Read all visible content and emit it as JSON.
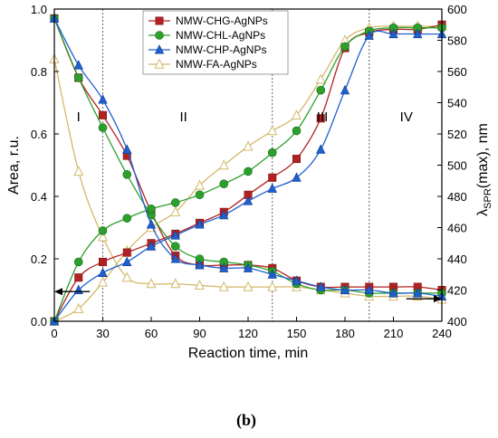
{
  "chart_data": {
    "type": "line",
    "xlabel": "Reaction time, min",
    "ylabel": "Area, r.u.",
    "y2label": {
      "main": "λ",
      "sub": "SPR",
      "tail": "(max), nm"
    },
    "xlim": [
      0,
      240
    ],
    "ylim": [
      0,
      1.0
    ],
    "y2lim": [
      400,
      600
    ],
    "xticks": [
      0,
      30,
      60,
      90,
      120,
      150,
      180,
      210,
      240
    ],
    "yticks": [
      0.0,
      0.2,
      0.4,
      0.6,
      0.8,
      1.0
    ],
    "y2ticks": [
      400,
      420,
      440,
      460,
      480,
      500,
      520,
      540,
      560,
      580,
      600
    ],
    "grid": false,
    "legend_position": "top-right",
    "zone_dividers_x": [
      30,
      135,
      195
    ],
    "zones": [
      {
        "label": "I",
        "x": 15,
        "y": 0.64
      },
      {
        "label": "II",
        "x": 80,
        "y": 0.64
      },
      {
        "label": "III",
        "x": 166,
        "y": 0.64
      },
      {
        "label": "IV",
        "x": 218,
        "y": 0.64
      }
    ],
    "arrows": [
      {
        "name": "left-axis-arrow",
        "from_x": 22,
        "to_x": 0,
        "y": 0.095
      },
      {
        "name": "right-axis-arrow",
        "from_x": 218,
        "to_x": 240,
        "y": 0.072
      }
    ],
    "x": [
      0,
      15,
      30,
      45,
      60,
      75,
      90,
      105,
      120,
      135,
      150,
      165,
      180,
      195,
      210,
      225,
      240
    ],
    "series": [
      {
        "name": "NMW-CHG-AgNPs",
        "color": "#b22222",
        "marker": "square",
        "area": [
          0.97,
          0.78,
          0.66,
          0.53,
          0.35,
          0.21,
          0.18,
          0.18,
          0.18,
          0.17,
          0.13,
          0.11,
          0.11,
          0.11,
          0.11,
          0.11,
          0.1
        ],
        "lspr": [
          400,
          428,
          438,
          444,
          450,
          456,
          463,
          470,
          481,
          492,
          504,
          530,
          575,
          585,
          587,
          587,
          590
        ]
      },
      {
        "name": "NMW-CHL-AgNPs",
        "color": "#2ca02c",
        "marker": "circle",
        "area": [
          0.97,
          0.78,
          0.62,
          0.47,
          0.34,
          0.24,
          0.2,
          0.19,
          0.18,
          0.16,
          0.12,
          0.1,
          0.1,
          0.09,
          0.09,
          0.09,
          0.09
        ],
        "lspr": [
          400,
          438,
          458,
          466,
          472,
          476,
          481,
          488,
          496,
          508,
          522,
          548,
          576,
          586,
          588,
          588,
          588
        ]
      },
      {
        "name": "NMW-CHP-AgNPs",
        "color": "#1f5fd0",
        "marker": "triangle",
        "area": [
          0.97,
          0.82,
          0.71,
          0.55,
          0.31,
          0.2,
          0.18,
          0.17,
          0.17,
          0.15,
          0.13,
          0.11,
          0.1,
          0.1,
          0.09,
          0.09,
          0.08
        ],
        "lspr": [
          400,
          420,
          431,
          438,
          448,
          455,
          462,
          468,
          477,
          485,
          492,
          510,
          548,
          583,
          584,
          584,
          584
        ]
      },
      {
        "name": "NMW-FA-AgNPs",
        "color": "#d4b86a",
        "marker": "triangle-open",
        "area": [
          0.84,
          0.48,
          0.27,
          0.14,
          0.12,
          0.12,
          0.115,
          0.11,
          0.11,
          0.11,
          0.11,
          0.1,
          0.09,
          0.08,
          0.08,
          0.08,
          0.07
        ],
        "lspr": [
          400,
          408,
          425,
          445,
          460,
          470,
          487,
          500,
          512,
          522,
          532,
          555,
          580,
          588,
          589,
          589,
          589
        ]
      }
    ]
  },
  "caption": "(b)"
}
